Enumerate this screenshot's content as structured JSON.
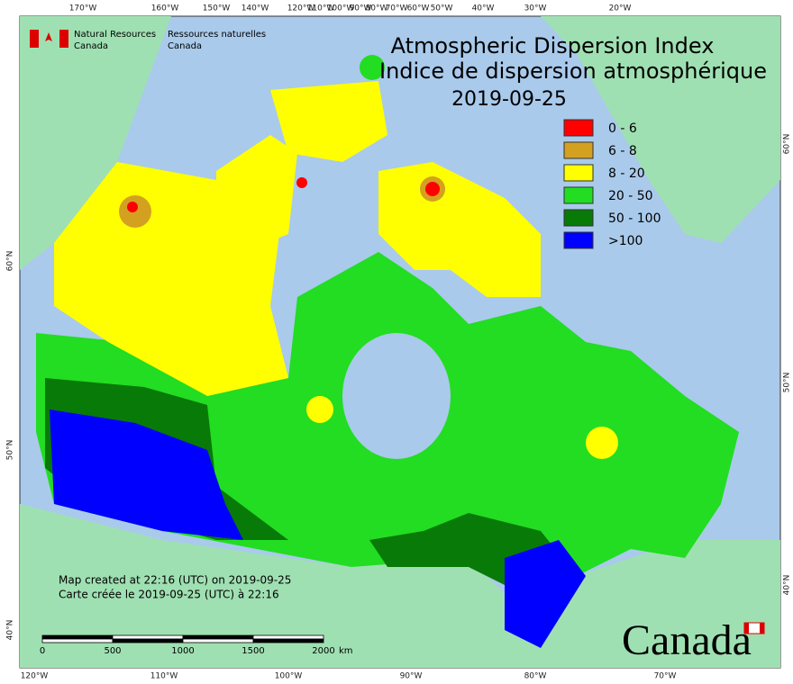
{
  "header": {
    "title_en": "Atmospheric Dispersion Index",
    "title_fr": "Indice de dispersion atmosphérique",
    "date": "2019-09-25"
  },
  "agency": {
    "en_line1": "Natural Resources",
    "en_line2": "Canada",
    "fr_line1": "Ressources naturelles",
    "fr_line2": "Canada"
  },
  "legend": [
    {
      "label": "0 - 6",
      "color": "#ff0000"
    },
    {
      "label": "6 - 8",
      "color": "#d4a020"
    },
    {
      "label": "8 - 20",
      "color": "#ffff00"
    },
    {
      "label": "20 - 50",
      "color": "#22dd22"
    },
    {
      "label": "50 - 100",
      "color": "#087a08"
    },
    {
      "label": ">100",
      "color": "#0000ff"
    }
  ],
  "graticule": {
    "top": [
      "170°W",
      "160°W",
      "150°W",
      "140°W",
      "120°W",
      "110°W",
      "100°W",
      "90°W",
      "80°W",
      "70°W",
      "60°W",
      "50°W",
      "40°W",
      "30°W",
      "20°W"
    ],
    "bottom": [
      "120°W",
      "110°W",
      "100°W",
      "90°W",
      "80°W",
      "70°W"
    ],
    "left": [
      "60°N",
      "50°N",
      "40°N"
    ],
    "right": [
      "60°N",
      "50°N",
      "40°N"
    ]
  },
  "credits": [
    "Map created at 22:16 (UTC) on 2019-09-25",
    "Carte créée le 2019-09-25 (UTC) à 22:16"
  ],
  "scale_bar": {
    "labels": [
      0,
      500,
      1000,
      1500,
      2000
    ],
    "unit": "km"
  },
  "wordmark": "Canada"
}
